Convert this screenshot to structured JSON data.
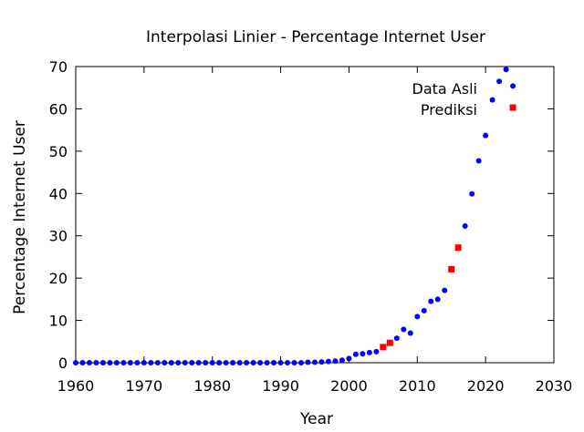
{
  "chart_data": {
    "type": "scatter",
    "title": "Interpolasi Linier - Percentage Internet User",
    "xlabel": "Year",
    "ylabel": "Percentage Internet User",
    "xlim": [
      1960,
      2030
    ],
    "ylim": [
      0,
      70
    ],
    "xticks": [
      1960,
      1970,
      1980,
      1990,
      2000,
      2010,
      2020,
      2030
    ],
    "yticks": [
      0,
      10,
      20,
      30,
      40,
      50,
      60,
      70
    ],
    "grid": false,
    "legend_position": "top-right",
    "series": [
      {
        "name": "Data Asli",
        "color": "#0000ff",
        "marker": "circle",
        "x": [
          1960,
          1961,
          1962,
          1963,
          1964,
          1965,
          1966,
          1967,
          1968,
          1969,
          1970,
          1971,
          1972,
          1973,
          1974,
          1975,
          1976,
          1977,
          1978,
          1979,
          1980,
          1981,
          1982,
          1983,
          1984,
          1985,
          1986,
          1987,
          1988,
          1989,
          1990,
          1991,
          1992,
          1993,
          1994,
          1995,
          1996,
          1997,
          1998,
          1999,
          2000,
          2001,
          2002,
          2003,
          2004,
          2007,
          2008,
          2009,
          2010,
          2011,
          2012,
          2013,
          2014,
          2017,
          2018,
          2019,
          2020,
          2021,
          2022,
          2023,
          2024
        ],
        "y": [
          0,
          0,
          0,
          0,
          0,
          0,
          0,
          0,
          0,
          0,
          0,
          0,
          0,
          0,
          0,
          0,
          0,
          0,
          0,
          0,
          0,
          0,
          0,
          0,
          0,
          0,
          0,
          0,
          0,
          0,
          0,
          0,
          0,
          0,
          0.1,
          0.1,
          0.2,
          0.3,
          0.4,
          0.6,
          1.0,
          2.0,
          2.1,
          2.4,
          2.6,
          5.8,
          7.9,
          7.0,
          10.9,
          12.3,
          14.5,
          15.0,
          17.1,
          32.3,
          39.9,
          47.7,
          53.7,
          62.1,
          66.5,
          69.3,
          65.4
        ]
      },
      {
        "name": "Prediksi",
        "color": "#ff0000",
        "marker": "square",
        "x": [
          2005,
          2006,
          2015,
          2016,
          2024
        ],
        "y": [
          3.7,
          4.7,
          22.1,
          27.2,
          60.3
        ]
      }
    ]
  }
}
